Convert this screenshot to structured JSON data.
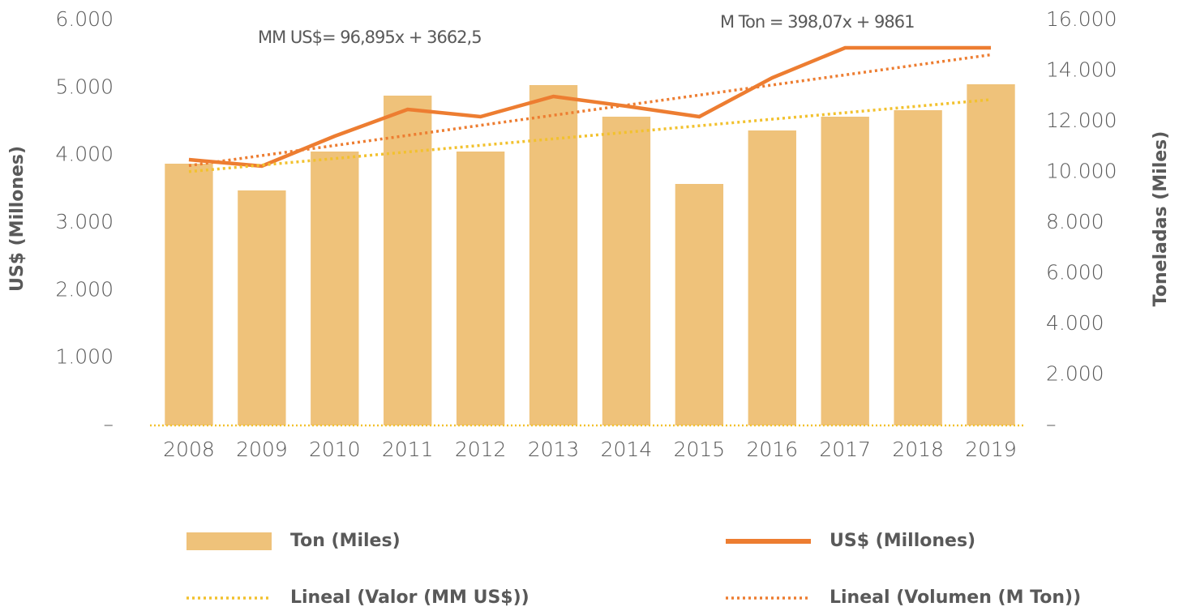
{
  "chart_data": {
    "type": "combo",
    "categories": [
      "2008",
      "2009",
      "2010",
      "2011",
      "2012",
      "2013",
      "2014",
      "2015",
      "2016",
      "2017",
      "2018",
      "2019"
    ],
    "ylabel": "US$ (Millones)",
    "y2label": "Toneladas (Miles)",
    "ylim": [
      0,
      6000
    ],
    "yticks": [
      {
        "value": 0,
        "label": "–"
      },
      {
        "value": 1000,
        "label": "1.000"
      },
      {
        "value": 2000,
        "label": "2.000"
      },
      {
        "value": 3000,
        "label": "3.000"
      },
      {
        "value": 4000,
        "label": "4.000"
      },
      {
        "value": 5000,
        "label": "5.000"
      },
      {
        "value": 6000,
        "label": "6.000"
      }
    ],
    "y2lim": [
      0,
      16000
    ],
    "y2ticks": [
      {
        "value": 0,
        "label": "–"
      },
      {
        "value": 2000,
        "label": "2.000"
      },
      {
        "value": 4000,
        "label": "4.000"
      },
      {
        "value": 6000,
        "label": "6.000"
      },
      {
        "value": 8000,
        "label": "8.000"
      },
      {
        "value": 10000,
        "label": "10.000"
      },
      {
        "value": 12000,
        "label": "12.000"
      },
      {
        "value": 14000,
        "label": "14.000"
      },
      {
        "value": 16000,
        "label": "16.000"
      }
    ],
    "annotations": [
      "MM US$= 96,895x + 3662,5",
      "M Ton = 398,07x + 9861"
    ],
    "series": [
      {
        "name": "Ton (Miles)",
        "type": "bar",
        "color": "#efc27a",
        "values": [
          3876,
          3480,
          4056,
          4884,
          4056,
          5040,
          4572,
          3576,
          4368,
          4572,
          4668,
          5052
        ]
      },
      {
        "name": "US$ (Millones)",
        "type": "line",
        "style": "solid",
        "axis": "y2",
        "color": "#ed7d31",
        "values": [
          10496,
          10240,
          11424,
          12480,
          12192,
          12992,
          12608,
          12192,
          13728,
          14912,
          14912,
          14912
        ]
      },
      {
        "name": "Lineal (Valor (MM US$))",
        "type": "line",
        "style": "dotted",
        "color": "#f2c12e",
        "values": [
          3759,
          3856,
          3953,
          4050,
          4147,
          4244,
          4341,
          4438,
          4535,
          4631,
          4728,
          4825
        ]
      },
      {
        "name": "Lineal (Volumen (M Ton))",
        "type": "line",
        "style": "dotted",
        "axis": "y2",
        "color": "#ed7d31",
        "values": [
          10259,
          10657,
          11055,
          11453,
          11851,
          12249,
          12648,
          13046,
          13444,
          13842,
          14240,
          14638
        ]
      }
    ]
  }
}
